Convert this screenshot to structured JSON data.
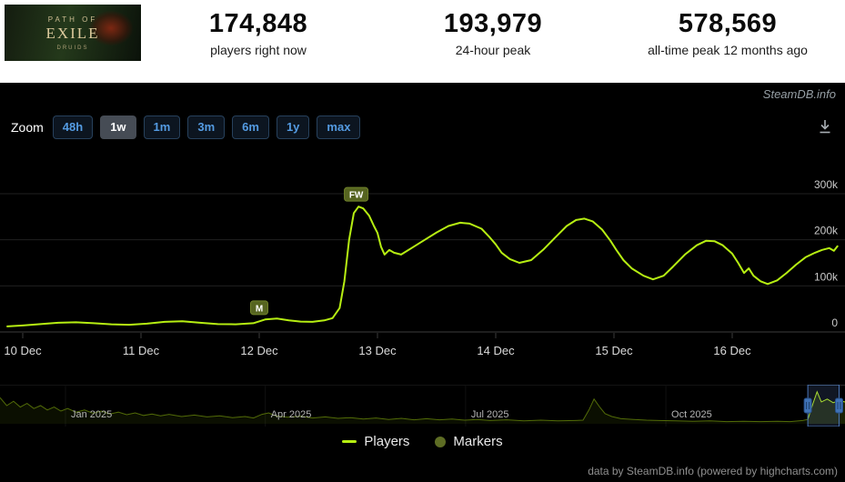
{
  "header": {
    "banner": {
      "line1": "PATH OF",
      "line2": "EXILE",
      "line3": "DRUIDS"
    },
    "stats": [
      {
        "value": "174,848",
        "label": "players right now"
      },
      {
        "value": "193,979",
        "label": "24-hour peak"
      },
      {
        "value": "578,569",
        "label": "all-time peak 12 months ago"
      }
    ]
  },
  "watermark": "SteamDB.info",
  "toolbar": {
    "zoom_label": "Zoom",
    "buttons": [
      "48h",
      "1w",
      "1m",
      "3m",
      "6m",
      "1y",
      "max"
    ],
    "selected": "1w"
  },
  "chart_data": {
    "type": "line",
    "title": "",
    "xlabel": "",
    "ylabel": "",
    "x_unit": "days since 10 Dec",
    "ylim": [
      0,
      380000
    ],
    "grid": "horizontal",
    "legend_position": "bottom-center",
    "x_ticks": [
      {
        "label": "10 Dec",
        "day": 0
      },
      {
        "label": "11 Dec",
        "day": 1
      },
      {
        "label": "12 Dec",
        "day": 2
      },
      {
        "label": "13 Dec",
        "day": 3
      },
      {
        "label": "14 Dec",
        "day": 4
      },
      {
        "label": "15 Dec",
        "day": 5
      },
      {
        "label": "16 Dec",
        "day": 6
      }
    ],
    "y_ticks": [
      {
        "label": "0",
        "value": 0
      },
      {
        "label": "100k",
        "value": 100000
      },
      {
        "label": "200k",
        "value": 200000
      },
      {
        "label": "300k",
        "value": 300000
      }
    ],
    "series": [
      {
        "name": "Players",
        "color": "#b6ee12",
        "points": [
          [
            -0.13,
            12000
          ],
          [
            0,
            14000
          ],
          [
            0.15,
            17000
          ],
          [
            0.3,
            20000
          ],
          [
            0.45,
            21000
          ],
          [
            0.6,
            19000
          ],
          [
            0.75,
            16500
          ],
          [
            0.9,
            15500
          ],
          [
            1.05,
            18000
          ],
          [
            1.2,
            22000
          ],
          [
            1.35,
            23000
          ],
          [
            1.5,
            20000
          ],
          [
            1.65,
            17000
          ],
          [
            1.8,
            16500
          ],
          [
            1.95,
            19000
          ],
          [
            2.05,
            27000
          ],
          [
            2.15,
            29000
          ],
          [
            2.25,
            25000
          ],
          [
            2.35,
            22500
          ],
          [
            2.45,
            22000
          ],
          [
            2.55,
            25000
          ],
          [
            2.62,
            30000
          ],
          [
            2.68,
            52000
          ],
          [
            2.72,
            110000
          ],
          [
            2.76,
            200000
          ],
          [
            2.8,
            258000
          ],
          [
            2.84,
            272000
          ],
          [
            2.88,
            268000
          ],
          [
            2.93,
            252000
          ],
          [
            2.97,
            230000
          ],
          [
            3,
            215000
          ],
          [
            3.03,
            185000
          ],
          [
            3.06,
            168000
          ],
          [
            3.1,
            178000
          ],
          [
            3.14,
            172000
          ],
          [
            3.2,
            168000
          ],
          [
            3.3,
            184000
          ],
          [
            3.4,
            200000
          ],
          [
            3.5,
            216000
          ],
          [
            3.6,
            230000
          ],
          [
            3.7,
            237000
          ],
          [
            3.78,
            235000
          ],
          [
            3.88,
            224000
          ],
          [
            3.95,
            205000
          ],
          [
            4,
            190000
          ],
          [
            4.05,
            172000
          ],
          [
            4.12,
            158000
          ],
          [
            4.2,
            150000
          ],
          [
            4.3,
            156000
          ],
          [
            4.4,
            178000
          ],
          [
            4.5,
            204000
          ],
          [
            4.6,
            230000
          ],
          [
            4.68,
            243000
          ],
          [
            4.75,
            246000
          ],
          [
            4.82,
            240000
          ],
          [
            4.9,
            222000
          ],
          [
            4.97,
            198000
          ],
          [
            5.02,
            178000
          ],
          [
            5.08,
            156000
          ],
          [
            5.15,
            138000
          ],
          [
            5.25,
            122000
          ],
          [
            5.33,
            114000
          ],
          [
            5.42,
            122000
          ],
          [
            5.5,
            142000
          ],
          [
            5.6,
            168000
          ],
          [
            5.7,
            188000
          ],
          [
            5.78,
            198000
          ],
          [
            5.85,
            197000
          ],
          [
            5.92,
            188000
          ],
          [
            6,
            170000
          ],
          [
            6.05,
            150000
          ],
          [
            6.1,
            128000
          ],
          [
            6.14,
            138000
          ],
          [
            6.18,
            122000
          ],
          [
            6.24,
            110000
          ],
          [
            6.3,
            104000
          ],
          [
            6.38,
            112000
          ],
          [
            6.46,
            128000
          ],
          [
            6.54,
            146000
          ],
          [
            6.62,
            162000
          ],
          [
            6.7,
            172000
          ],
          [
            6.76,
            178000
          ],
          [
            6.82,
            182000
          ],
          [
            6.86,
            176000
          ],
          [
            6.89,
            186000
          ]
        ]
      }
    ],
    "markers": [
      {
        "label": "M",
        "day": 2.0,
        "value": 26000
      },
      {
        "label": "FW",
        "day": 2.82,
        "value": 272000
      }
    ],
    "legend": [
      {
        "label": "Players",
        "type": "line",
        "color": "#b6ee12"
      },
      {
        "label": "Markers",
        "type": "circle",
        "color": "#5e6d24"
      }
    ]
  },
  "navigator": {
    "color": "#b6ee12",
    "range_labels": [
      {
        "label": "Jan 2025",
        "x": 0.0775
      },
      {
        "label": "Apr 2025",
        "x": 0.314
      },
      {
        "label": "Jul 2025",
        "x": 0.551
      },
      {
        "label": "Oct 2025",
        "x": 0.788
      }
    ],
    "points": [
      [
        0,
        0.72
      ],
      [
        0.008,
        0.5
      ],
      [
        0.016,
        0.62
      ],
      [
        0.024,
        0.46
      ],
      [
        0.032,
        0.56
      ],
      [
        0.04,
        0.42
      ],
      [
        0.048,
        0.5
      ],
      [
        0.056,
        0.38
      ],
      [
        0.064,
        0.46
      ],
      [
        0.072,
        0.35
      ],
      [
        0.08,
        0.42
      ],
      [
        0.09,
        0.32
      ],
      [
        0.1,
        0.38
      ],
      [
        0.11,
        0.29
      ],
      [
        0.12,
        0.35
      ],
      [
        0.13,
        0.27
      ],
      [
        0.14,
        0.32
      ],
      [
        0.15,
        0.25
      ],
      [
        0.16,
        0.3
      ],
      [
        0.17,
        0.23
      ],
      [
        0.18,
        0.27
      ],
      [
        0.19,
        0.22
      ],
      [
        0.2,
        0.26
      ],
      [
        0.215,
        0.2
      ],
      [
        0.23,
        0.24
      ],
      [
        0.245,
        0.19
      ],
      [
        0.26,
        0.22
      ],
      [
        0.275,
        0.17
      ],
      [
        0.29,
        0.2
      ],
      [
        0.3,
        0.16
      ],
      [
        0.31,
        0.26
      ],
      [
        0.318,
        0.3
      ],
      [
        0.326,
        0.22
      ],
      [
        0.34,
        0.18
      ],
      [
        0.355,
        0.21
      ],
      [
        0.37,
        0.16
      ],
      [
        0.385,
        0.19
      ],
      [
        0.4,
        0.15
      ],
      [
        0.415,
        0.17
      ],
      [
        0.43,
        0.13
      ],
      [
        0.445,
        0.16
      ],
      [
        0.46,
        0.12
      ],
      [
        0.475,
        0.15
      ],
      [
        0.49,
        0.11
      ],
      [
        0.505,
        0.14
      ],
      [
        0.52,
        0.11
      ],
      [
        0.535,
        0.13
      ],
      [
        0.55,
        0.1
      ],
      [
        0.565,
        0.12
      ],
      [
        0.58,
        0.09
      ],
      [
        0.6,
        0.11
      ],
      [
        0.62,
        0.08
      ],
      [
        0.64,
        0.1
      ],
      [
        0.66,
        0.08
      ],
      [
        0.68,
        0.09
      ],
      [
        0.69,
        0.1
      ],
      [
        0.697,
        0.38
      ],
      [
        0.703,
        0.68
      ],
      [
        0.71,
        0.45
      ],
      [
        0.716,
        0.28
      ],
      [
        0.724,
        0.2
      ],
      [
        0.735,
        0.14
      ],
      [
        0.75,
        0.12
      ],
      [
        0.765,
        0.1
      ],
      [
        0.78,
        0.09
      ],
      [
        0.8,
        0.08
      ],
      [
        0.82,
        0.07
      ],
      [
        0.84,
        0.08
      ],
      [
        0.86,
        0.06
      ],
      [
        0.88,
        0.07
      ],
      [
        0.9,
        0.06
      ],
      [
        0.92,
        0.07
      ],
      [
        0.935,
        0.06
      ],
      [
        0.95,
        0.09
      ],
      [
        0.956,
        0.12
      ],
      [
        0.962,
        0.55
      ],
      [
        0.967,
        0.88
      ],
      [
        0.972,
        0.6
      ],
      [
        0.979,
        0.68
      ],
      [
        0.986,
        0.58
      ],
      [
        0.993,
        0.64
      ],
      [
        1,
        0.6
      ]
    ],
    "selection": {
      "start": 0.956,
      "end": 0.993
    }
  },
  "footer": {
    "credits": "data by SteamDB.info (powered by highcharts.com)"
  }
}
